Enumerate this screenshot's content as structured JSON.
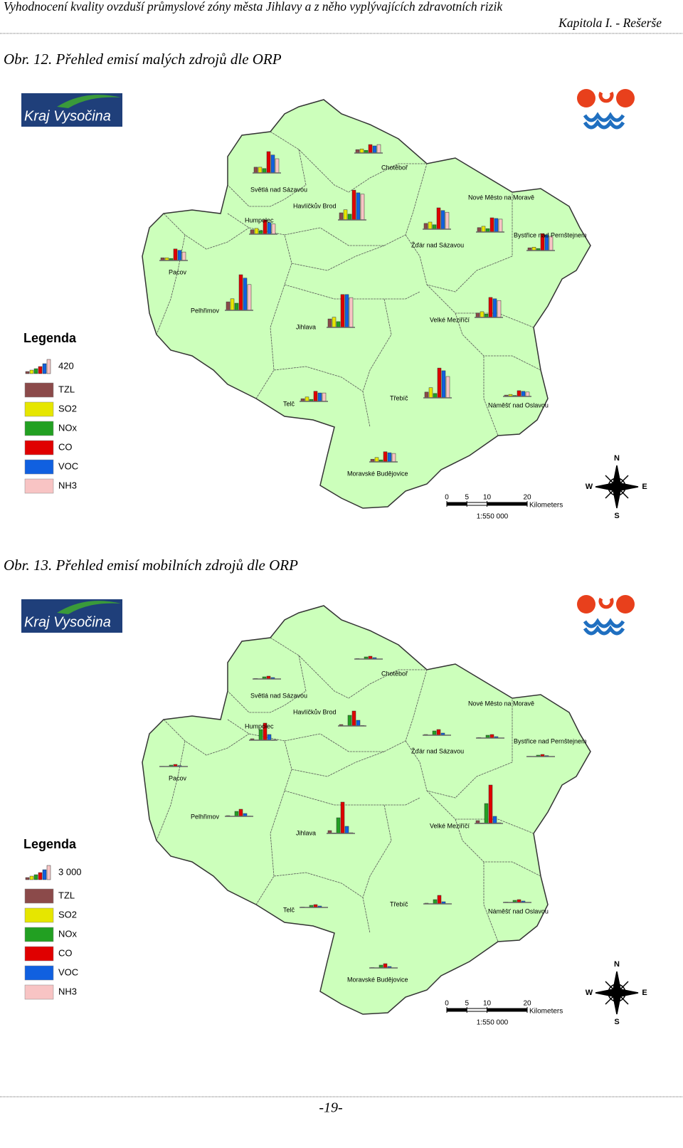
{
  "header": {
    "title": "Vyhodnocení kvality ovzduší průmyslové zóny města Jihlavy a z něho vyplývajících zdravotních rizik",
    "chapter": "Kapitola I. - Rešerše"
  },
  "figures": [
    {
      "caption": "Obr. 12.  Přehled emisí malých zdrojů dle ORP",
      "logo_text": "Kraj Vysočina",
      "legend": {
        "title": "Legenda",
        "scale_value": 420,
        "items": [
          {
            "name": "TZL",
            "color": "#8b4a4a"
          },
          {
            "name": "SO2",
            "color": "#e6e600"
          },
          {
            "name": "NOx",
            "color": "#22a022"
          },
          {
            "name": "CO",
            "color": "#e00000"
          },
          {
            "name": "VOC",
            "color": "#1060e0"
          },
          {
            "name": "NH3",
            "color": "#f8c4c4"
          }
        ]
      },
      "regions": [
        {
          "name": "Chotěboř",
          "values": [
            100,
            120,
            80,
            250,
            210,
            250
          ]
        },
        {
          "name": "Světlá nad Sázavou",
          "values": [
            170,
            170,
            130,
            630,
            530,
            420
          ]
        },
        {
          "name": "Havlíčkův Brod",
          "values": [
            210,
            300,
            170,
            880,
            800,
            760
          ]
        },
        {
          "name": "Humpolec",
          "values": [
            130,
            170,
            100,
            420,
            340,
            300
          ]
        },
        {
          "name": "Pacov",
          "values": [
            80,
            80,
            60,
            340,
            300,
            250
          ]
        },
        {
          "name": "Pelhřimov",
          "values": [
            250,
            340,
            210,
            1050,
            950,
            760
          ]
        },
        {
          "name": "Jihlava",
          "values": [
            250,
            300,
            170,
            970,
            970,
            880
          ]
        },
        {
          "name": "Žďár nad Sázavou",
          "values": [
            170,
            210,
            130,
            630,
            550,
            500
          ]
        },
        {
          "name": "Nové Město na Moravě",
          "values": [
            130,
            170,
            100,
            420,
            400,
            380
          ]
        },
        {
          "name": "Bystřice nad Pernštejnem",
          "values": [
            80,
            100,
            60,
            500,
            460,
            420
          ]
        },
        {
          "name": "Velké Meziříčí",
          "values": [
            130,
            170,
            100,
            590,
            550,
            500
          ]
        },
        {
          "name": "Telč",
          "values": [
            80,
            130,
            60,
            300,
            250,
            250
          ]
        },
        {
          "name": "Třebíč",
          "values": [
            170,
            300,
            130,
            880,
            800,
            630
          ]
        },
        {
          "name": "Náměšť nad Oslavou",
          "values": [
            40,
            60,
            30,
            170,
            150,
            130
          ]
        },
        {
          "name": "Moravské Budějovice",
          "values": [
            80,
            130,
            60,
            300,
            270,
            250
          ]
        }
      ],
      "scale": {
        "ticks": [
          0,
          5,
          10,
          20
        ],
        "unit": "Kilometers",
        "ratio": "1:550 000"
      },
      "compass": {
        "n": "N",
        "s": "S",
        "e": "E",
        "w": "W"
      }
    },
    {
      "caption": "Obr. 13.  Přehled emisí mobilních zdrojů dle ORP",
      "logo_text": "Kraj Vysočina",
      "legend": {
        "title": "Legenda",
        "scale_value": {
          "value": 3000,
          "label": "3 000"
        },
        "items": [
          {
            "name": "TZL",
            "color": "#8b4a4a"
          },
          {
            "name": "SO2",
            "color": "#e6e600"
          },
          {
            "name": "NOx",
            "color": "#22a022"
          },
          {
            "name": "CO",
            "color": "#e00000"
          },
          {
            "name": "VOC",
            "color": "#1060e0"
          },
          {
            "name": "NH3",
            "color": "#f8c4c4"
          }
        ]
      },
      "regions": [
        {
          "name": "Chotěboř",
          "values": [
            100,
            20,
            450,
            600,
            300,
            30
          ]
        },
        {
          "name": "Světlá nad Sázavou",
          "values": [
            100,
            20,
            450,
            600,
            300,
            30
          ]
        },
        {
          "name": "Havlíčkův Brod",
          "values": [
            300,
            50,
            2250,
            3150,
            1200,
            100
          ]
        },
        {
          "name": "Humpolec",
          "values": [
            300,
            50,
            2250,
            3600,
            1200,
            100
          ]
        },
        {
          "name": "Pacov",
          "values": [
            50,
            10,
            300,
            450,
            200,
            20
          ]
        },
        {
          "name": "Pelhřimov",
          "values": [
            150,
            30,
            1050,
            1500,
            600,
            60
          ]
        },
        {
          "name": "Jihlava",
          "values": [
            600,
            100,
            3300,
            6600,
            1500,
            150
          ]
        },
        {
          "name": "Žďár nad Sázavou",
          "values": [
            150,
            30,
            900,
            1200,
            450,
            40
          ]
        },
        {
          "name": "Nové Město na Moravě",
          "values": [
            100,
            20,
            600,
            750,
            300,
            30
          ]
        },
        {
          "name": "Bystřice nad Pernštejnem",
          "values": [
            50,
            10,
            300,
            450,
            200,
            20
          ]
        },
        {
          "name": "Velké Meziříčí",
          "values": [
            600,
            100,
            4200,
            8100,
            1500,
            150
          ]
        },
        {
          "name": "Telč",
          "values": [
            80,
            15,
            450,
            600,
            300,
            30
          ]
        },
        {
          "name": "Třebíč",
          "values": [
            150,
            30,
            900,
            1800,
            450,
            50
          ]
        },
        {
          "name": "Náměšť nad Oslavou",
          "values": [
            80,
            15,
            450,
            600,
            300,
            30
          ]
        },
        {
          "name": "Moravské Budějovice",
          "values": [
            80,
            15,
            600,
            900,
            300,
            30
          ]
        }
      ],
      "scale": {
        "ticks": [
          0,
          5,
          10,
          20
        ],
        "unit": "Kilometers",
        "ratio": "1:550 000"
      },
      "compass": {
        "n": "N",
        "s": "S",
        "e": "E",
        "w": "W"
      }
    }
  ],
  "footer": {
    "page": "-19-"
  }
}
